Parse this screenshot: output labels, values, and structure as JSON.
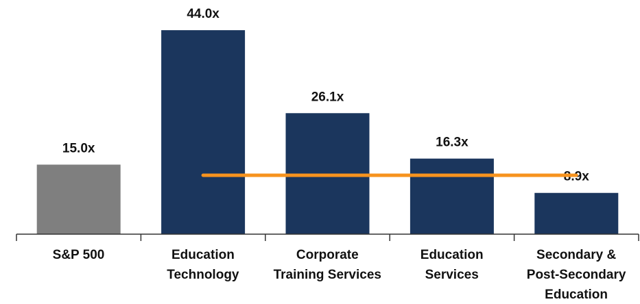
{
  "chart_data": {
    "type": "bar",
    "categories": [
      "S&P 500",
      "Education\nTechnology",
      "Corporate\nTraining Services",
      "Education\nServices",
      "Secondary &\nPost-Secondary\nEducation"
    ],
    "values": [
      15.0,
      44.0,
      26.1,
      16.3,
      8.9
    ],
    "value_labels": [
      "15.0x",
      "44.0x",
      "26.1x",
      "16.3x",
      "8.9x"
    ],
    "colors": [
      "#7f7f7f",
      "#1b365d",
      "#1b365d",
      "#1b365d",
      "#1b365d"
    ],
    "ylim": [
      0,
      48
    ],
    "reference_line": {
      "value": 12.7,
      "color": "#f7931e"
    }
  }
}
